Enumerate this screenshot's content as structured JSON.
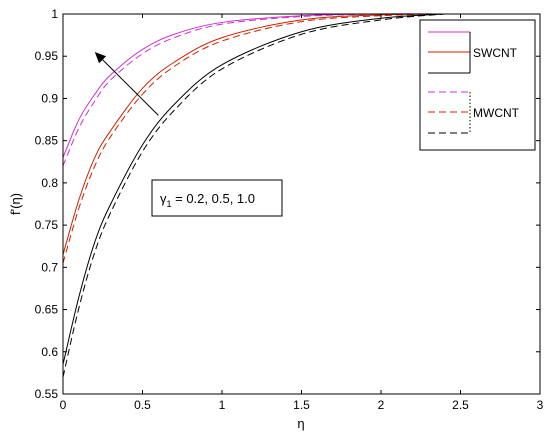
{
  "chart_data": {
    "type": "line",
    "xlabel": "η",
    "ylabel": "f'(η)",
    "xlim": [
      0,
      3
    ],
    "ylim": [
      0.55,
      1
    ],
    "xticks": [
      "0",
      "0.5",
      "1",
      "1.5",
      "2",
      "2.5",
      "3"
    ],
    "yticks": [
      "0.55",
      "0.6",
      "0.65",
      "0.7",
      "0.75",
      "0.8",
      "0.85",
      "0.9",
      "0.95",
      "1"
    ],
    "grid": false,
    "legend_position": "top-right",
    "legend_labels": [
      "SWCNT",
      "MWCNT"
    ],
    "annotation": "γ1 = 0.2, 0.5, 1.0",
    "annotation_main": "γ",
    "annotation_sub": "1",
    "annotation_rest": " = 0.2, 0.5, 1.0",
    "arrow": {
      "from": [
        0.6,
        0.88
      ],
      "to": [
        0.2,
        0.955
      ],
      "meaning": "increasing γ1"
    },
    "series": [
      {
        "group": "SWCNT",
        "color": "#cc33cc",
        "dash": "solid",
        "x": [
          0,
          0.1,
          0.2,
          0.3,
          0.5,
          0.7,
          1.0,
          1.5,
          2.0,
          2.4
        ],
        "y": [
          0.83,
          0.875,
          0.905,
          0.928,
          0.958,
          0.976,
          0.99,
          0.998,
          1.0,
          1.0
        ]
      },
      {
        "group": "SWCNT",
        "color": "#cc2200",
        "dash": "solid",
        "x": [
          0,
          0.1,
          0.2,
          0.3,
          0.5,
          0.7,
          1.0,
          1.5,
          2.0,
          2.4
        ],
        "y": [
          0.715,
          0.78,
          0.83,
          0.862,
          0.912,
          0.943,
          0.972,
          0.993,
          0.999,
          1.0
        ]
      },
      {
        "group": "SWCNT",
        "color": "#000000",
        "dash": "solid",
        "x": [
          0,
          0.1,
          0.2,
          0.3,
          0.5,
          0.7,
          1.0,
          1.5,
          2.0,
          2.4
        ],
        "y": [
          0.585,
          0.665,
          0.73,
          0.775,
          0.845,
          0.893,
          0.94,
          0.979,
          0.995,
          1.0
        ]
      },
      {
        "group": "MWCNT",
        "color": "#cc33cc",
        "dash": "dashed",
        "x": [
          0,
          0.1,
          0.2,
          0.3,
          0.5,
          0.7,
          1.0,
          1.5,
          2.0,
          2.4
        ],
        "y": [
          0.82,
          0.865,
          0.897,
          0.922,
          0.953,
          0.972,
          0.988,
          0.997,
          1.0,
          1.0
        ]
      },
      {
        "group": "MWCNT",
        "color": "#cc2200",
        "dash": "dashed",
        "x": [
          0,
          0.1,
          0.2,
          0.3,
          0.5,
          0.7,
          1.0,
          1.5,
          2.0,
          2.4
        ],
        "y": [
          0.705,
          0.77,
          0.82,
          0.855,
          0.905,
          0.938,
          0.968,
          0.991,
          0.998,
          1.0
        ]
      },
      {
        "group": "MWCNT",
        "color": "#000000",
        "dash": "dashed",
        "x": [
          0,
          0.1,
          0.2,
          0.3,
          0.5,
          0.7,
          1.0,
          1.5,
          2.0,
          2.4
        ],
        "y": [
          0.57,
          0.652,
          0.718,
          0.765,
          0.837,
          0.886,
          0.935,
          0.976,
          0.993,
          1.0
        ]
      }
    ]
  }
}
